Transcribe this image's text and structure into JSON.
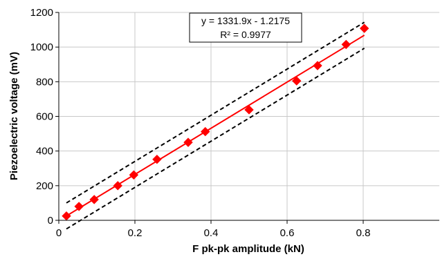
{
  "chart_data": {
    "type": "scatter",
    "xlabel": "F pk-pk amplitude (kN)",
    "ylabel": "Piezoelectric voltage (mV)",
    "xlim": [
      0,
      1.0
    ],
    "ylim": [
      0,
      1200
    ],
    "x_ticks": [
      0,
      0.2,
      0.4,
      0.6,
      0.8
    ],
    "x_tick_labels": [
      "0",
      "0.2",
      "0.4",
      "0.6",
      "0.8"
    ],
    "y_ticks": [
      0,
      200,
      400,
      600,
      800,
      1000,
      1200
    ],
    "y_tick_labels": [
      "0",
      "200",
      "400",
      "600",
      "800",
      "1000",
      "1200"
    ],
    "grid": true,
    "series": [
      {
        "marker": "diamond",
        "color": "#ff0000",
        "x": [
          0.02,
          0.053,
          0.093,
          0.155,
          0.197,
          0.258,
          0.34,
          0.385,
          0.5,
          0.625,
          0.68,
          0.755,
          0.803
        ],
        "y": [
          25,
          80,
          120,
          200,
          262,
          352,
          450,
          512,
          638,
          805,
          893,
          1015,
          1108
        ]
      }
    ],
    "trendline": {
      "slope": 1331.9,
      "intercept": -1.2175,
      "x_range": [
        0.02,
        0.803
      ],
      "color": "#ff0000"
    },
    "confidence_bands": {
      "offset": 75,
      "style": "dashed",
      "color": "#000000"
    },
    "annotation": {
      "equation": "y = 1331.9x - 1.2175",
      "r_squared": "R² = 0.9977"
    }
  }
}
